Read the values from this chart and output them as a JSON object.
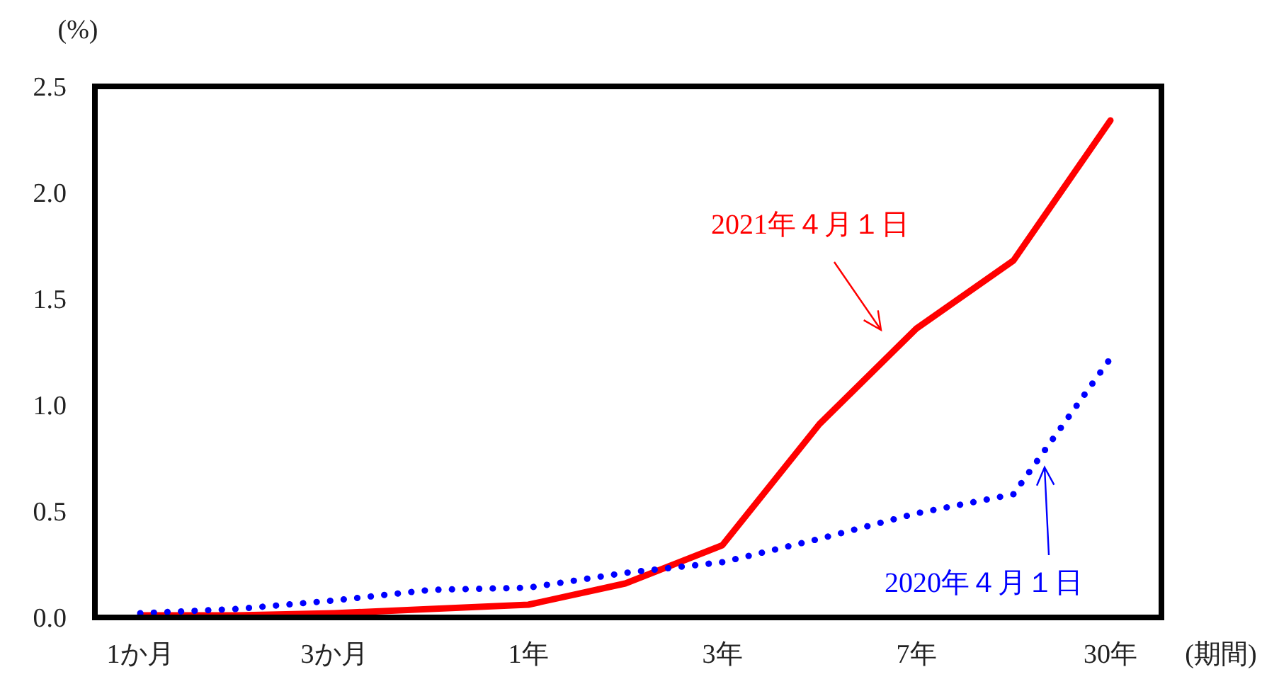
{
  "chart_data": {
    "type": "line",
    "ylabel": "(%)",
    "xlabel": "(期間)",
    "categories": [
      "1か月",
      null,
      "3か月",
      null,
      "1年",
      null,
      "3年",
      null,
      "7年",
      null,
      "30年"
    ],
    "ylim": [
      0,
      2.5
    ],
    "yticks": [
      {
        "value": 0,
        "label": "0.0"
      },
      {
        "value": 0.5,
        "label": "0.5"
      },
      {
        "value": 1,
        "label": "1.0"
      },
      {
        "value": 1.5,
        "label": "1.5"
      },
      {
        "value": 2,
        "label": "2.0"
      },
      {
        "value": 2.5,
        "label": "2.5"
      }
    ],
    "grid": false,
    "marker": "none",
    "series": [
      {
        "name": "2021年４月１日",
        "color": "#ff0000",
        "line_style": "solid",
        "values": [
          0.01,
          0.01,
          0.02,
          0.04,
          0.06,
          0.16,
          0.34,
          0.91,
          1.36,
          1.68,
          2.34
        ]
      },
      {
        "name": "2020年４月１日",
        "color": "#0000ff",
        "line_style": "dotted",
        "values": [
          0.02,
          0.04,
          0.08,
          0.13,
          0.14,
          0.21,
          0.26,
          0.37,
          0.49,
          0.58,
          1.22
        ]
      }
    ]
  }
}
